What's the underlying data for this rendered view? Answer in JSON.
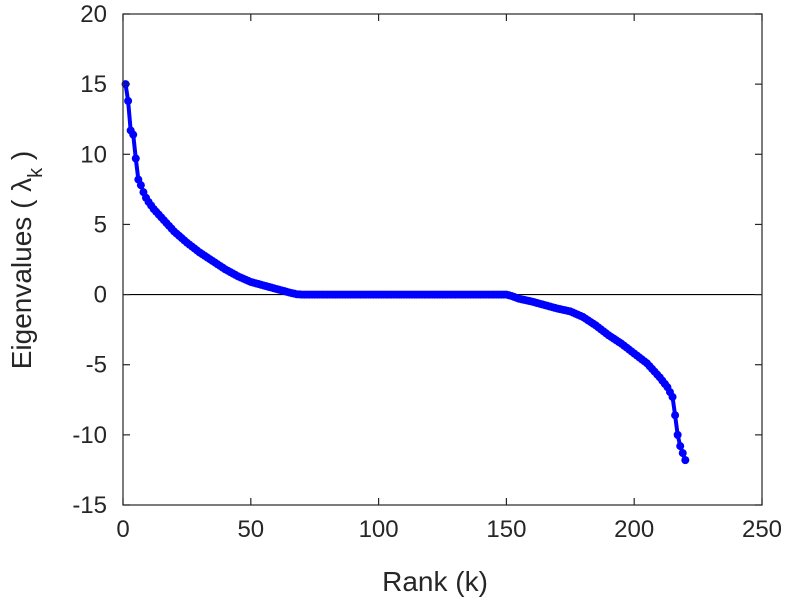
{
  "chart_data": {
    "type": "line",
    "xlabel": "Rank (k)",
    "ylabel": "Eigenvalues (  λ",
    "ylabel_subscript": "k",
    "ylabel_close": " )",
    "xlim": [
      0,
      250
    ],
    "ylim": [
      -15,
      20
    ],
    "xticks": [
      0,
      50,
      100,
      150,
      200,
      250
    ],
    "yticks": [
      20,
      15,
      10,
      5,
      0,
      -5,
      -10,
      -15
    ],
    "grid": false,
    "zero_line": true,
    "series": [
      {
        "color": "#0000ff",
        "marker": "circle",
        "anchor_points": [
          [
            1,
            15.0
          ],
          [
            2,
            13.8
          ],
          [
            3,
            11.7
          ],
          [
            4,
            11.4
          ],
          [
            5,
            9.7
          ],
          [
            6,
            8.2
          ],
          [
            7,
            7.8
          ],
          [
            8,
            7.3
          ],
          [
            9,
            6.9
          ],
          [
            10,
            6.6
          ],
          [
            12,
            6.1
          ],
          [
            14,
            5.7
          ],
          [
            17,
            5.1
          ],
          [
            20,
            4.5
          ],
          [
            25,
            3.7
          ],
          [
            30,
            3.0
          ],
          [
            35,
            2.4
          ],
          [
            40,
            1.8
          ],
          [
            45,
            1.3
          ],
          [
            50,
            0.9
          ],
          [
            55,
            0.65
          ],
          [
            60,
            0.4
          ],
          [
            65,
            0.15
          ],
          [
            68,
            0.02
          ],
          [
            70,
            0.0
          ],
          [
            150,
            0.0
          ],
          [
            152,
            -0.1
          ],
          [
            155,
            -0.3
          ],
          [
            160,
            -0.5
          ],
          [
            165,
            -0.75
          ],
          [
            170,
            -1.0
          ],
          [
            175,
            -1.2
          ],
          [
            180,
            -1.6
          ],
          [
            185,
            -2.2
          ],
          [
            190,
            -2.9
          ],
          [
            195,
            -3.5
          ],
          [
            200,
            -4.2
          ],
          [
            205,
            -4.9
          ],
          [
            210,
            -5.9
          ],
          [
            213,
            -6.6
          ],
          [
            215,
            -7.3
          ],
          [
            216,
            -8.6
          ],
          [
            217,
            -10.0
          ],
          [
            218,
            -10.8
          ],
          [
            219,
            -11.3
          ],
          [
            220,
            -11.8
          ]
        ]
      }
    ]
  }
}
